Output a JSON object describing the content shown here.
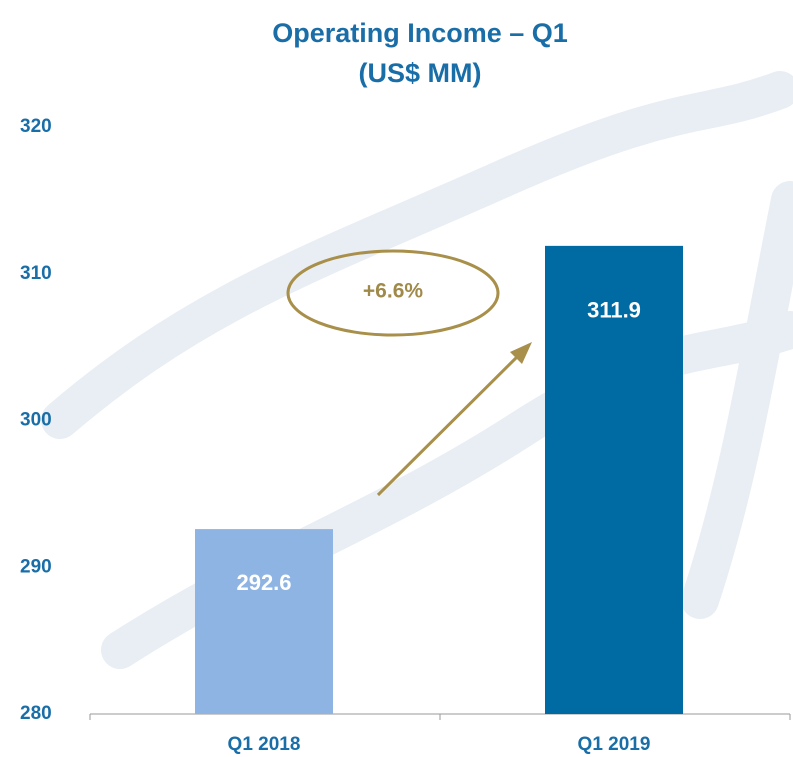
{
  "chart_data": {
    "type": "bar",
    "title": "Operating Income – Q1",
    "subtitle": "(US$ MM)",
    "categories": [
      "Q1 2018",
      "Q1 2019"
    ],
    "values": [
      292.6,
      311.9
    ],
    "colors": [
      "#8eb4e3",
      "#006aa3"
    ],
    "ylim": [
      280,
      320
    ],
    "yticks": [
      280,
      290,
      300,
      310,
      320
    ],
    "annotation": "+6.6%"
  }
}
